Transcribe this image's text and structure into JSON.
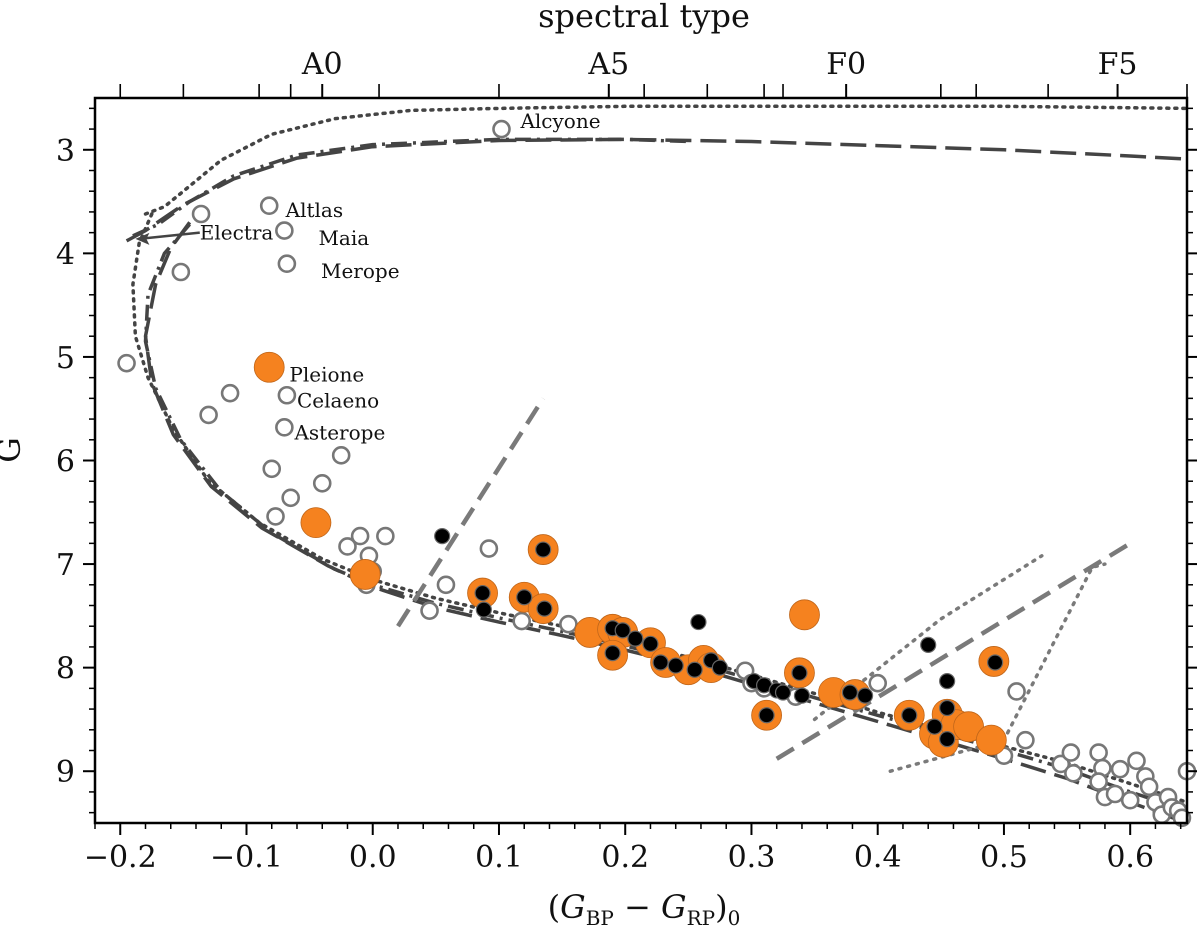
{
  "chart_data": {
    "type": "scatter",
    "xlabel": "(G_BP − G_RP)_0",
    "xlabel_parts": {
      "open": "(",
      "G1": "G",
      "sub1": "BP",
      "minus": " − ",
      "G2": "G",
      "sub2": "RP",
      "close": ")",
      "sub0": "0"
    },
    "ylabel": "G",
    "top_xlabel": "spectral type",
    "xlim": [
      -0.22,
      0.645
    ],
    "ylim": [
      9.5,
      2.5
    ],
    "y_inverted": true,
    "x_ticks": [
      {
        "value": -0.2,
        "label": "−0.2"
      },
      {
        "value": -0.1,
        "label": "−0.1"
      },
      {
        "value": 0.0,
        "label": "0.0"
      },
      {
        "value": 0.1,
        "label": "0.1"
      },
      {
        "value": 0.2,
        "label": "0.2"
      },
      {
        "value": 0.3,
        "label": "0.3"
      },
      {
        "value": 0.4,
        "label": "0.4"
      },
      {
        "value": 0.5,
        "label": "0.5"
      },
      {
        "value": 0.6,
        "label": "0.6"
      }
    ],
    "y_ticks": [
      {
        "value": 3,
        "label": "3"
      },
      {
        "value": 4,
        "label": "4"
      },
      {
        "value": 5,
        "label": "5"
      },
      {
        "value": 6,
        "label": "6"
      },
      {
        "value": 7,
        "label": "7"
      },
      {
        "value": 8,
        "label": "8"
      },
      {
        "value": 9,
        "label": "9"
      }
    ],
    "top_ticks": [
      {
        "value": -0.04,
        "label": "A0"
      },
      {
        "value": 0.187,
        "label": "A5"
      },
      {
        "value": 0.375,
        "label": "F0"
      },
      {
        "value": 0.59,
        "label": "F5"
      }
    ],
    "top_minor_ticks": [
      -0.2,
      -0.15,
      -0.09,
      -0.065,
      0.005,
      0.1,
      0.215,
      0.265,
      0.31,
      0.325,
      0.45,
      0.478,
      0.535,
      0.645
    ],
    "annotations": [
      {
        "text": "Alcyone",
        "x": 0.117,
        "y": 2.72
      },
      {
        "text": "Altlas",
        "x": -0.069,
        "y": 3.58
      },
      {
        "text": "Electra",
        "x": -0.137,
        "y": 3.8
      },
      {
        "text": "Maia",
        "x": -0.043,
        "y": 3.85
      },
      {
        "text": "Merope",
        "x": -0.041,
        "y": 4.17
      },
      {
        "text": "Pleione",
        "x": -0.066,
        "y": 5.17
      },
      {
        "text": "Celaeno",
        "x": -0.06,
        "y": 5.42
      },
      {
        "text": "Asterope",
        "x": -0.062,
        "y": 5.73
      }
    ],
    "colors": {
      "orange": "#f5821f",
      "black": "#000000",
      "open_edge": "#777777",
      "curve": "#444444",
      "guide": "#7a7a7a"
    },
    "series": [
      {
        "style": "open",
        "points": [
          [
            0.102,
            2.8
          ],
          [
            -0.082,
            3.54
          ],
          [
            -0.136,
            3.62
          ],
          [
            -0.07,
            3.78
          ],
          [
            -0.068,
            4.1
          ],
          [
            -0.152,
            4.18
          ],
          [
            -0.195,
            5.06
          ],
          [
            -0.068,
            5.37
          ],
          [
            -0.113,
            5.35
          ],
          [
            -0.13,
            5.56
          ],
          [
            -0.07,
            5.68
          ],
          [
            -0.08,
            6.08
          ],
          [
            -0.065,
            6.36
          ],
          [
            -0.04,
            6.22
          ],
          [
            -0.025,
            5.95
          ],
          [
            -0.077,
            6.54
          ],
          [
            -0.01,
            6.73
          ],
          [
            0.01,
            6.73
          ],
          [
            -0.02,
            6.83
          ],
          [
            -0.003,
            6.92
          ],
          [
            0.0,
            7.07
          ],
          [
            -0.005,
            7.2
          ],
          [
            0.058,
            7.2
          ],
          [
            0.045,
            7.45
          ],
          [
            0.092,
            6.85
          ],
          [
            0.118,
            7.55
          ],
          [
            0.155,
            7.58
          ],
          [
            0.228,
            7.98
          ],
          [
            0.295,
            8.03
          ],
          [
            0.3,
            8.15
          ],
          [
            0.31,
            8.2
          ],
          [
            0.335,
            8.28
          ],
          [
            0.4,
            8.15
          ],
          [
            0.452,
            8.75
          ],
          [
            0.51,
            8.23
          ],
          [
            0.5,
            8.85
          ],
          [
            0.517,
            8.7
          ],
          [
            0.545,
            8.93
          ],
          [
            0.553,
            8.82
          ],
          [
            0.555,
            9.02
          ],
          [
            0.575,
            8.82
          ],
          [
            0.578,
            8.97
          ],
          [
            0.592,
            8.98
          ],
          [
            0.575,
            9.1
          ],
          [
            0.58,
            9.25
          ],
          [
            0.588,
            9.22
          ],
          [
            0.6,
            9.28
          ],
          [
            0.605,
            8.9
          ],
          [
            0.612,
            9.05
          ],
          [
            0.615,
            9.15
          ],
          [
            0.62,
            9.3
          ],
          [
            0.625,
            9.42
          ],
          [
            0.63,
            9.25
          ],
          [
            0.633,
            9.35
          ],
          [
            0.638,
            9.38
          ],
          [
            0.645,
            9.0
          ],
          [
            0.641,
            9.45
          ]
        ]
      },
      {
        "style": "orange",
        "points": [
          [
            -0.082,
            5.1
          ],
          [
            -0.045,
            6.6
          ],
          [
            -0.006,
            7.1
          ],
          [
            0.087,
            7.28
          ],
          [
            0.135,
            6.86
          ],
          [
            0.12,
            7.32
          ],
          [
            0.135,
            7.43
          ],
          [
            0.172,
            7.66
          ],
          [
            0.19,
            7.63
          ],
          [
            0.198,
            7.66
          ],
          [
            0.19,
            7.88
          ],
          [
            0.22,
            7.76
          ],
          [
            0.232,
            7.95
          ],
          [
            0.25,
            8.02
          ],
          [
            0.262,
            7.93
          ],
          [
            0.268,
            8.0
          ],
          [
            0.342,
            7.49
          ],
          [
            0.338,
            8.05
          ],
          [
            0.312,
            8.46
          ],
          [
            0.365,
            8.24
          ],
          [
            0.382,
            8.26
          ],
          [
            0.425,
            8.46
          ],
          [
            0.445,
            8.64
          ],
          [
            0.452,
            8.72
          ],
          [
            0.455,
            8.45
          ],
          [
            0.462,
            8.55
          ],
          [
            0.472,
            8.57
          ],
          [
            0.492,
            7.94
          ],
          [
            0.49,
            8.7
          ]
        ]
      },
      {
        "style": "black",
        "points": [
          [
            0.055,
            6.73
          ],
          [
            0.088,
            7.44
          ],
          [
            0.135,
            6.86
          ],
          [
            0.136,
            7.43
          ],
          [
            0.12,
            7.32
          ],
          [
            0.087,
            7.28
          ],
          [
            0.19,
            7.62
          ],
          [
            0.198,
            7.64
          ],
          [
            0.208,
            7.72
          ],
          [
            0.22,
            7.77
          ],
          [
            0.19,
            7.86
          ],
          [
            0.228,
            7.95
          ],
          [
            0.24,
            7.98
          ],
          [
            0.255,
            8.02
          ],
          [
            0.258,
            7.56
          ],
          [
            0.268,
            7.93
          ],
          [
            0.275,
            8.0
          ],
          [
            0.302,
            8.13
          ],
          [
            0.31,
            8.17
          ],
          [
            0.312,
            8.46
          ],
          [
            0.32,
            8.22
          ],
          [
            0.325,
            8.24
          ],
          [
            0.338,
            8.05
          ],
          [
            0.34,
            8.27
          ],
          [
            0.378,
            8.24
          ],
          [
            0.39,
            8.27
          ],
          [
            0.425,
            8.46
          ],
          [
            0.44,
            7.78
          ],
          [
            0.445,
            8.57
          ],
          [
            0.455,
            8.13
          ],
          [
            0.455,
            8.39
          ],
          [
            0.455,
            8.69
          ],
          [
            0.493,
            7.95
          ]
        ]
      }
    ],
    "lines": [
      {
        "style": "dotted",
        "points": [
          [
            -0.18,
            3.62
          ],
          [
            -0.165,
            3.55
          ],
          [
            -0.15,
            3.4
          ],
          [
            -0.12,
            3.1
          ],
          [
            -0.08,
            2.85
          ],
          [
            -0.03,
            2.7
          ],
          [
            0.03,
            2.62
          ],
          [
            0.1,
            2.6
          ],
          [
            0.2,
            2.58
          ],
          [
            0.35,
            2.58
          ],
          [
            0.5,
            2.58
          ],
          [
            0.645,
            2.6
          ]
        ]
      },
      {
        "style": "dashdot",
        "points": [
          [
            -0.19,
            3.83
          ],
          [
            -0.17,
            3.72
          ],
          [
            -0.145,
            3.5
          ],
          [
            -0.11,
            3.25
          ],
          [
            -0.06,
            3.05
          ],
          [
            0.0,
            2.95
          ],
          [
            0.1,
            2.9
          ],
          [
            0.2,
            2.9
          ],
          [
            0.25,
            2.92
          ]
        ]
      },
      {
        "style": "longdash",
        "points": [
          [
            -0.195,
            3.88
          ],
          [
            -0.18,
            3.78
          ],
          [
            -0.15,
            3.53
          ],
          [
            -0.11,
            3.28
          ],
          [
            -0.06,
            3.08
          ],
          [
            0.0,
            2.97
          ],
          [
            0.1,
            2.91
          ],
          [
            0.2,
            2.9
          ],
          [
            0.3,
            2.92
          ],
          [
            0.4,
            2.96
          ],
          [
            0.5,
            3.0
          ],
          [
            0.6,
            3.06
          ],
          [
            0.645,
            3.09
          ]
        ]
      },
      {
        "style": "dotted",
        "points": [
          [
            -0.175,
            3.62
          ],
          [
            -0.185,
            3.9
          ],
          [
            -0.19,
            4.3
          ],
          [
            -0.188,
            4.8
          ],
          [
            -0.178,
            5.2
          ],
          [
            -0.158,
            5.7
          ],
          [
            -0.13,
            6.2
          ],
          [
            -0.09,
            6.6
          ],
          [
            -0.04,
            6.95
          ],
          [
            0.0,
            7.15
          ],
          [
            0.05,
            7.33
          ],
          [
            0.1,
            7.47
          ],
          [
            0.15,
            7.6
          ],
          [
            0.2,
            7.74
          ],
          [
            0.25,
            7.9
          ],
          [
            0.3,
            8.07
          ],
          [
            0.35,
            8.25
          ],
          [
            0.4,
            8.43
          ],
          [
            0.45,
            8.6
          ],
          [
            0.5,
            8.76
          ],
          [
            0.55,
            8.92
          ],
          [
            0.6,
            9.12
          ],
          [
            0.645,
            9.3
          ]
        ]
      },
      {
        "style": "dashdot",
        "points": [
          [
            -0.145,
            3.72
          ],
          [
            -0.165,
            4.0
          ],
          [
            -0.178,
            4.4
          ],
          [
            -0.18,
            4.85
          ],
          [
            -0.172,
            5.3
          ],
          [
            -0.152,
            5.8
          ],
          [
            -0.12,
            6.3
          ],
          [
            -0.08,
            6.7
          ],
          [
            -0.03,
            7.05
          ],
          [
            0.0,
            7.2
          ],
          [
            0.05,
            7.38
          ],
          [
            0.1,
            7.52
          ],
          [
            0.15,
            7.65
          ],
          [
            0.2,
            7.79
          ],
          [
            0.25,
            7.94
          ],
          [
            0.3,
            8.11
          ],
          [
            0.35,
            8.29
          ],
          [
            0.4,
            8.46
          ],
          [
            0.45,
            8.63
          ],
          [
            0.5,
            8.8
          ],
          [
            0.55,
            8.98
          ],
          [
            0.6,
            9.2
          ],
          [
            0.645,
            9.38
          ]
        ]
      },
      {
        "style": "longdash",
        "points": [
          [
            -0.145,
            3.7
          ],
          [
            -0.16,
            3.95
          ],
          [
            -0.172,
            4.3
          ],
          [
            -0.18,
            4.8
          ],
          [
            -0.175,
            5.25
          ],
          [
            -0.158,
            5.75
          ],
          [
            -0.128,
            6.25
          ],
          [
            -0.088,
            6.65
          ],
          [
            -0.035,
            7.02
          ],
          [
            0.0,
            7.22
          ],
          [
            0.05,
            7.42
          ],
          [
            0.1,
            7.56
          ],
          [
            0.15,
            7.69
          ],
          [
            0.2,
            7.83
          ],
          [
            0.25,
            7.98
          ],
          [
            0.3,
            8.16
          ],
          [
            0.35,
            8.34
          ],
          [
            0.4,
            8.52
          ],
          [
            0.45,
            8.7
          ],
          [
            0.5,
            8.88
          ],
          [
            0.55,
            9.07
          ],
          [
            0.6,
            9.3
          ],
          [
            0.645,
            9.5
          ]
        ]
      },
      {
        "style": "guide-dash",
        "points": [
          [
            0.02,
            7.6
          ],
          [
            0.135,
            5.4
          ]
        ]
      },
      {
        "style": "guide-dash",
        "points": [
          [
            0.32,
            8.88
          ],
          [
            0.6,
            6.8
          ]
        ]
      },
      {
        "style": "guide-dot",
        "points": [
          [
            0.35,
            8.5
          ],
          [
            0.45,
            7.53
          ],
          [
            0.53,
            6.92
          ]
        ]
      },
      {
        "style": "guide-dot",
        "points": [
          [
            0.41,
            9.0
          ],
          [
            0.5,
            8.7
          ],
          [
            0.57,
            7.03
          ],
          [
            0.58,
            7.0
          ]
        ]
      }
    ],
    "grid": false,
    "legend": "none"
  }
}
